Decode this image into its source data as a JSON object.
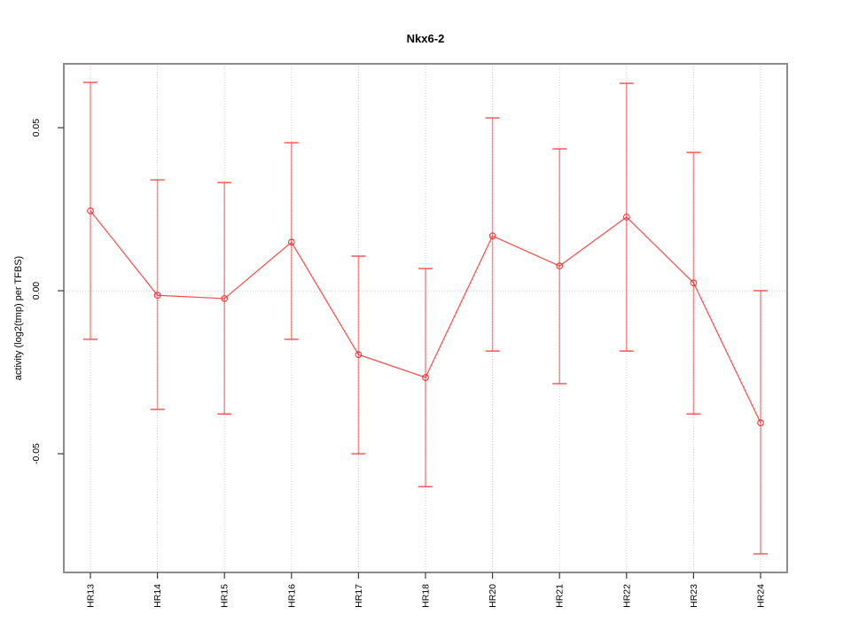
{
  "chart_data": {
    "type": "line",
    "title": "Nkx6-2",
    "xlabel": "",
    "ylabel": "activity (log2(tmp) per TFBS)",
    "categories": [
      "HR13",
      "HR14",
      "HR15",
      "HR16",
      "HR17",
      "HR18",
      "HR20",
      "HR21",
      "HR22",
      "HR23",
      "HR24"
    ],
    "series": [
      {
        "name": "activity",
        "values": [
          0.0245,
          -0.0014,
          -0.0024,
          0.0149,
          -0.0196,
          -0.0266,
          0.0168,
          0.0076,
          0.0226,
          0.0024,
          -0.0405
        ],
        "error_low": [
          -0.0149,
          -0.0364,
          -0.0378,
          -0.0149,
          -0.05,
          -0.0601,
          -0.0185,
          -0.0285,
          -0.0185,
          -0.0378,
          -0.0807
        ],
        "error_high": [
          0.0639,
          0.034,
          0.0332,
          0.0454,
          0.0106,
          0.0068,
          0.053,
          0.0435,
          0.0636,
          0.0424,
          0.0
        ]
      }
    ],
    "yticks": [
      -0.05,
      0.0,
      0.05
    ],
    "ytick_labels": [
      "-0.05",
      "0.00",
      "0.05"
    ],
    "ylim": [
      -0.0864,
      0.0696
    ],
    "legend": "none",
    "grid": {
      "vertical_dotted_per_category": true,
      "horizontal_dotted_at_zero": true
    },
    "marker": "open-circle",
    "colors": {
      "series_line": "rgba(255,40,40,0.85)",
      "error_bar": "rgba(255,60,60,0.55)",
      "error_cap": "rgba(255,60,60,0.8)",
      "marker_stroke": "rgba(255,30,30,0.9)",
      "grid": "#cfcfcf",
      "plot_border": "#8c8c8c",
      "tick": "#3c3c3c",
      "text": "#000000"
    }
  }
}
